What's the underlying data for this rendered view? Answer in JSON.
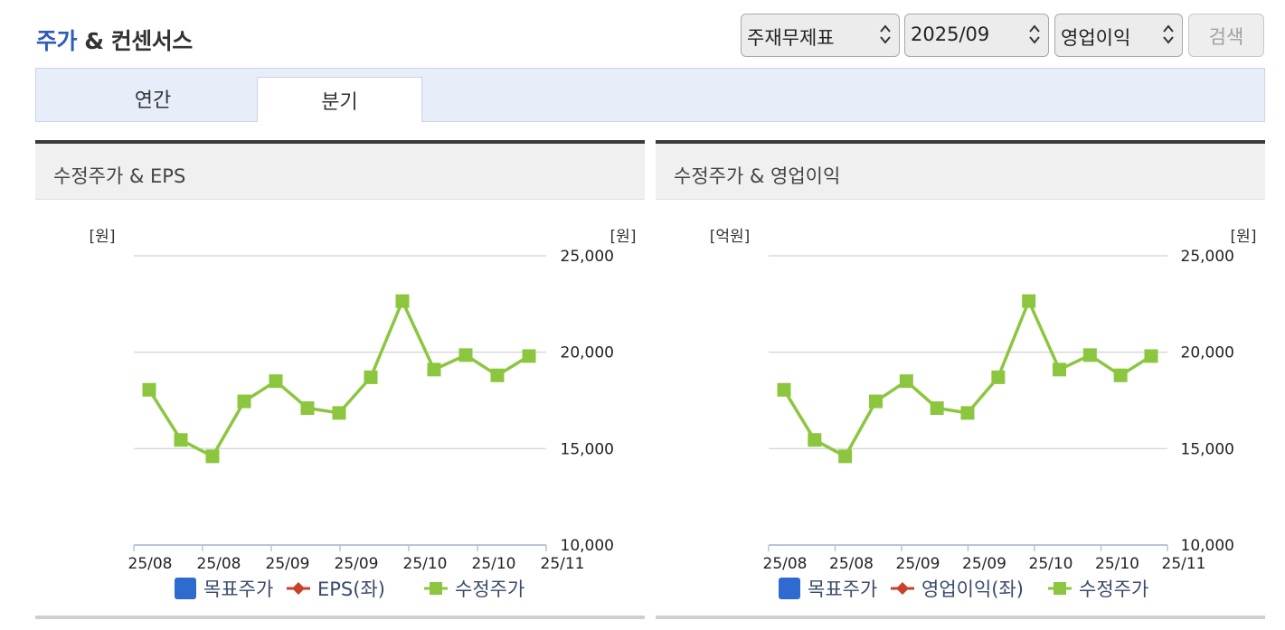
{
  "header": {
    "title_accent": "주가",
    "title_rest": " & 컨센서스"
  },
  "controls": {
    "statement_select": "주재무제표",
    "period_select": "2025/09",
    "metric_select": "영업이익",
    "search_button": "검색"
  },
  "tabs": [
    {
      "label": "연간",
      "active": false
    },
    {
      "label": "분기",
      "active": true
    }
  ],
  "colors": {
    "target_price": "#2f6ad0",
    "metric": "#c8412a",
    "adjusted_price": "#8cc63f",
    "grid": "#d9d9d9",
    "accent": "#2e5cb8"
  },
  "chart_data": [
    {
      "type": "line",
      "title": "수정주가 & EPS",
      "y_left_unit": "[원]",
      "y_right_unit": "[원]",
      "ylim": [
        10000,
        25000
      ],
      "y_ticks": [
        "10,000",
        "15,000",
        "20,000",
        "25,000"
      ],
      "y_tick_values": [
        10000,
        15000,
        20000,
        25000
      ],
      "x_tick_labels": [
        "25/08",
        "25/08",
        "25/09",
        "25/09",
        "25/10",
        "25/10",
        "25/11"
      ],
      "grid": true,
      "legend_position": "bottom",
      "legend": [
        {
          "label": "목표주가",
          "marker": "square"
        },
        {
          "label": "EPS(좌)",
          "marker": "diamond"
        },
        {
          "label": "수정주가",
          "marker": "square-line"
        }
      ],
      "series": [
        {
          "name": "수정주가",
          "values": [
            18050,
            15450,
            14600,
            17450,
            18500,
            17100,
            16850,
            18700,
            22650,
            19100,
            19850,
            18800,
            19800
          ]
        }
      ]
    },
    {
      "type": "line",
      "title": "수정주가 & 영업이익",
      "y_left_unit": "[억원]",
      "y_right_unit": "[원]",
      "ylim": [
        10000,
        25000
      ],
      "y_ticks": [
        "10,000",
        "15,000",
        "20,000",
        "25,000"
      ],
      "y_tick_values": [
        10000,
        15000,
        20000,
        25000
      ],
      "x_tick_labels": [
        "25/08",
        "25/08",
        "25/09",
        "25/09",
        "25/10",
        "25/10",
        "25/11"
      ],
      "grid": true,
      "legend_position": "bottom",
      "legend": [
        {
          "label": "목표주가",
          "marker": "square"
        },
        {
          "label": "영업이익(좌)",
          "marker": "diamond"
        },
        {
          "label": "수정주가",
          "marker": "square-line"
        }
      ],
      "series": [
        {
          "name": "수정주가",
          "values": [
            18050,
            15450,
            14600,
            17450,
            18500,
            17100,
            16850,
            18700,
            22650,
            19100,
            19850,
            18800,
            19800
          ]
        }
      ]
    }
  ]
}
